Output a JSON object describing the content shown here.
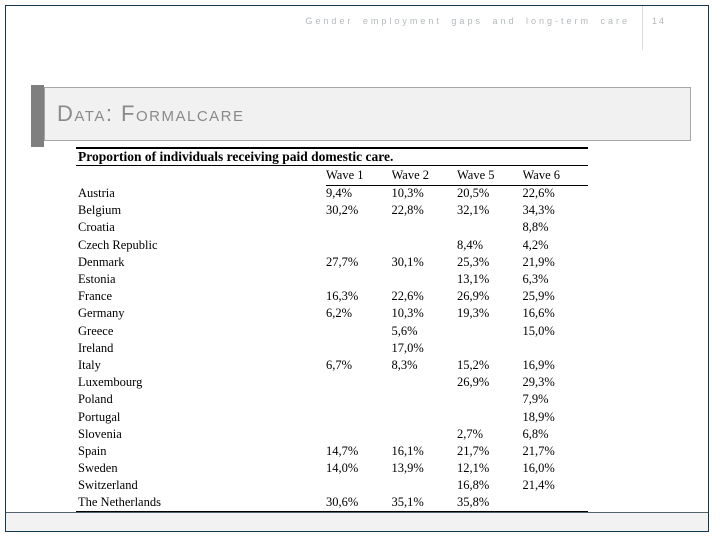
{
  "header": {
    "title": "Gender employment gaps and long-term care",
    "page_number": "14"
  },
  "slide": {
    "title": "Data: Formalcare"
  },
  "table": {
    "title": "Proportion of individuals receiving paid domestic care.",
    "columns": [
      "Wave 1",
      "Wave 2",
      "Wave 5",
      "Wave 6"
    ],
    "rows": [
      {
        "country": "Austria",
        "values": [
          "9,4%",
          "10,3%",
          "20,5%",
          "22,6%"
        ]
      },
      {
        "country": "Belgium",
        "values": [
          "30,2%",
          "22,8%",
          "32,1%",
          "34,3%"
        ]
      },
      {
        "country": "Croatia",
        "values": [
          "",
          "",
          "",
          "8,8%"
        ]
      },
      {
        "country": "Czech Republic",
        "values": [
          "",
          "",
          "8,4%",
          "4,2%"
        ]
      },
      {
        "country": "Denmark",
        "values": [
          "27,7%",
          "30,1%",
          "25,3%",
          "21,9%"
        ]
      },
      {
        "country": "Estonia",
        "values": [
          "",
          "",
          "13,1%",
          "6,3%"
        ]
      },
      {
        "country": "France",
        "values": [
          "16,3%",
          "22,6%",
          "26,9%",
          "25,9%"
        ]
      },
      {
        "country": "Germany",
        "values": [
          "6,2%",
          "10,3%",
          "19,3%",
          "16,6%"
        ]
      },
      {
        "country": "Greece",
        "values": [
          "",
          "5,6%",
          "",
          "15,0%"
        ]
      },
      {
        "country": "Ireland",
        "values": [
          "",
          "17,0%",
          "",
          ""
        ]
      },
      {
        "country": "Italy",
        "values": [
          "6,7%",
          "8,3%",
          "15,2%",
          "16,9%"
        ]
      },
      {
        "country": "Luxembourg",
        "values": [
          "",
          "",
          "26,9%",
          "29,3%"
        ]
      },
      {
        "country": "Poland",
        "values": [
          "",
          "",
          "",
          "7,9%"
        ]
      },
      {
        "country": "Portugal",
        "values": [
          "",
          "",
          "",
          "18,9%"
        ]
      },
      {
        "country": "Slovenia",
        "values": [
          "",
          "",
          "2,7%",
          "6,8%"
        ]
      },
      {
        "country": "Spain",
        "values": [
          "14,7%",
          "16,1%",
          "21,7%",
          "21,7%"
        ]
      },
      {
        "country": "Sweden",
        "values": [
          "14,0%",
          "13,9%",
          "12,1%",
          "16,0%"
        ]
      },
      {
        "country": "Switzerland",
        "values": [
          "",
          "",
          "16,8%",
          "21,4%"
        ]
      },
      {
        "country": "The Netherlands",
        "values": [
          "30,6%",
          "35,1%",
          "35,8%",
          ""
        ]
      }
    ]
  },
  "colors": {
    "slide_border": "#15384e",
    "header_text": "#b3b9bc",
    "title_bar": "#7f7f7f",
    "title_block_bg": "#f1f1f1",
    "title_text": "#8a8a8a",
    "footer_bg": "#f2f2f2"
  }
}
